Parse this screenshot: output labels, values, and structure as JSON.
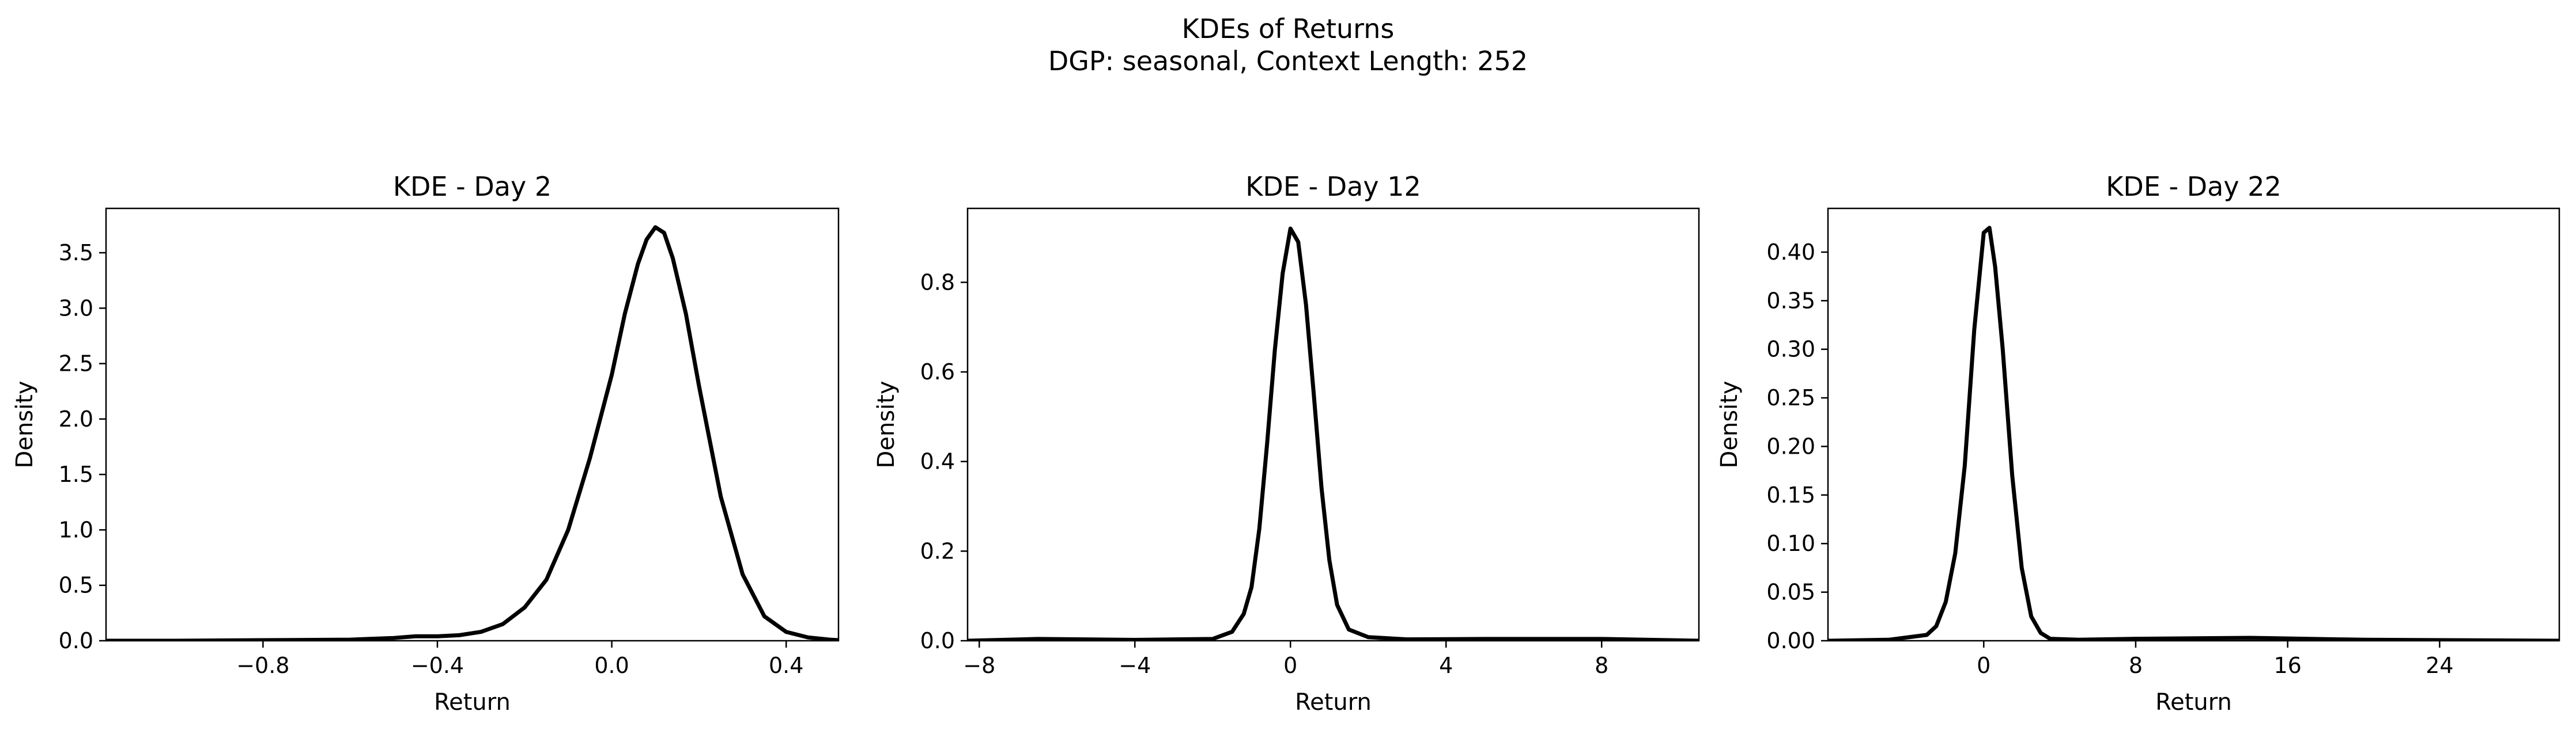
{
  "figure": {
    "title_line1": "KDEs of Returns",
    "title_line2": "DGP: seasonal, Context Length: 252",
    "line_color": "#000000"
  },
  "chart_data": [
    {
      "type": "line",
      "title": "KDE - Day 2",
      "xlabel": "Return",
      "ylabel": "Density",
      "xlim": [
        -1.16,
        0.52
      ],
      "ylim": [
        0,
        3.9
      ],
      "xticks": [
        -0.8,
        -0.4,
        0.0,
        0.4
      ],
      "xtick_labels": [
        "−0.8",
        "−0.4",
        "0.0",
        "0.4"
      ],
      "yticks": [
        0,
        0.5,
        1.0,
        1.5,
        2.0,
        2.5,
        3.0,
        3.5
      ],
      "ytick_labels": [
        "0.0",
        "0.5",
        "1.0",
        "1.5",
        "2.0",
        "2.5",
        "3.0",
        "3.5"
      ],
      "series": [
        {
          "x": [
            -1.16,
            -1.0,
            -0.8,
            -0.6,
            -0.5,
            -0.45,
            -0.4,
            -0.35,
            -0.3,
            -0.25,
            -0.2,
            -0.15,
            -0.1,
            -0.05,
            0.0,
            0.03,
            0.06,
            0.08,
            0.1,
            0.12,
            0.14,
            0.17,
            0.2,
            0.25,
            0.3,
            0.35,
            0.4,
            0.45,
            0.5,
            0.52
          ],
          "y": [
            0.0,
            0.0,
            0.005,
            0.01,
            0.025,
            0.04,
            0.04,
            0.05,
            0.08,
            0.15,
            0.3,
            0.55,
            1.0,
            1.65,
            2.4,
            2.95,
            3.4,
            3.62,
            3.73,
            3.68,
            3.45,
            2.95,
            2.3,
            1.3,
            0.6,
            0.22,
            0.08,
            0.03,
            0.01,
            0.005
          ]
        }
      ]
    },
    {
      "type": "line",
      "title": "KDE - Day 12",
      "xlabel": "Return",
      "ylabel": "Density",
      "xlim": [
        -8.3,
        10.5
      ],
      "ylim": [
        0,
        0.965
      ],
      "xticks": [
        -8,
        -4,
        0,
        4,
        8
      ],
      "xtick_labels": [
        "−8",
        "−4",
        "0",
        "4",
        "8"
      ],
      "yticks": [
        0,
        0.2,
        0.4,
        0.6,
        0.8
      ],
      "ytick_labels": [
        "0.0",
        "0.2",
        "0.4",
        "0.6",
        "0.8"
      ],
      "series": [
        {
          "x": [
            -8.3,
            -6.5,
            -4.0,
            -2.0,
            -1.5,
            -1.2,
            -1.0,
            -0.8,
            -0.6,
            -0.4,
            -0.2,
            0.0,
            0.2,
            0.4,
            0.6,
            0.8,
            1.0,
            1.2,
            1.5,
            2.0,
            3.0,
            5.0,
            8.0,
            10.5
          ],
          "y": [
            0.0,
            0.004,
            0.002,
            0.004,
            0.02,
            0.06,
            0.12,
            0.25,
            0.44,
            0.65,
            0.82,
            0.92,
            0.89,
            0.75,
            0.55,
            0.34,
            0.18,
            0.08,
            0.025,
            0.008,
            0.003,
            0.004,
            0.004,
            0.0
          ]
        }
      ]
    },
    {
      "type": "line",
      "title": "KDE - Day 22",
      "xlabel": "Return",
      "ylabel": "Density",
      "xlim": [
        -8.2,
        30.3
      ],
      "ylim": [
        0,
        0.445
      ],
      "xticks": [
        0,
        8,
        16,
        24
      ],
      "xtick_labels": [
        "0",
        "8",
        "16",
        "24"
      ],
      "yticks": [
        0,
        0.05,
        0.1,
        0.15,
        0.2,
        0.25,
        0.3,
        0.35,
        0.4
      ],
      "ytick_labels": [
        "0.00",
        "0.05",
        "0.10",
        "0.15",
        "0.20",
        "0.25",
        "0.30",
        "0.35",
        "0.40"
      ],
      "series": [
        {
          "x": [
            -8.2,
            -5.0,
            -3.0,
            -2.5,
            -2.0,
            -1.5,
            -1.0,
            -0.5,
            0.0,
            0.3,
            0.6,
            1.0,
            1.5,
            2.0,
            2.5,
            3.0,
            3.5,
            5.0,
            8.0,
            14.0,
            20.0,
            30.3
          ],
          "y": [
            0.0,
            0.001,
            0.006,
            0.015,
            0.04,
            0.09,
            0.18,
            0.32,
            0.42,
            0.425,
            0.385,
            0.3,
            0.17,
            0.075,
            0.025,
            0.008,
            0.002,
            0.001,
            0.002,
            0.003,
            0.001,
            0.0
          ]
        }
      ]
    }
  ]
}
